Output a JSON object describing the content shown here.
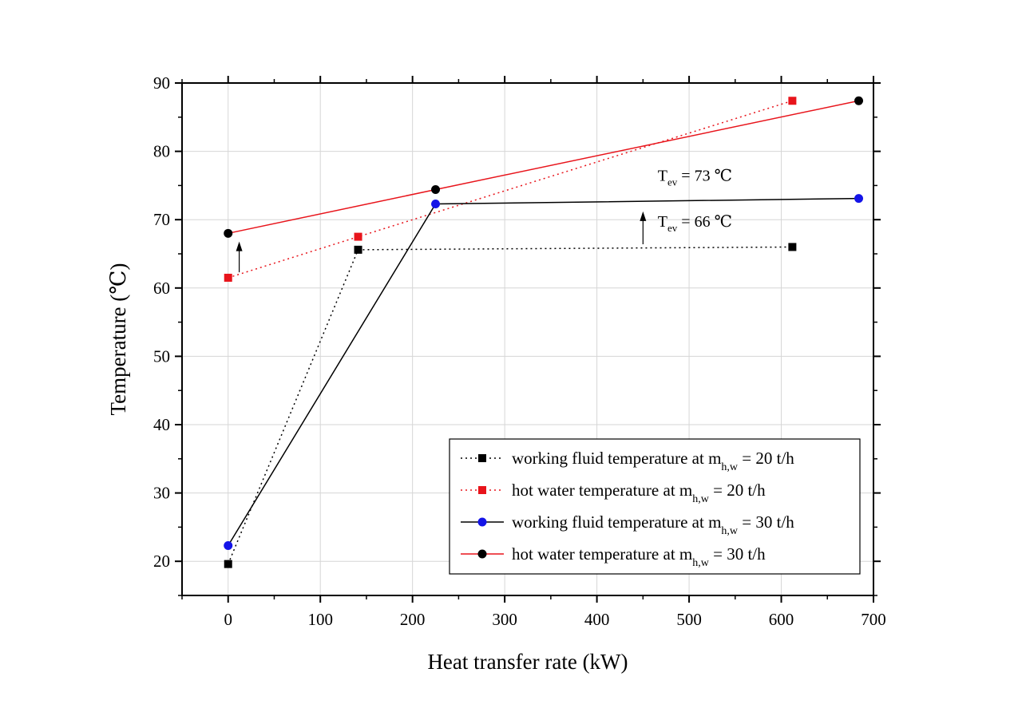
{
  "chart_data": {
    "type": "line",
    "xlabel": "Heat transfer rate (kW)",
    "ylabel": "Temperature (℃)",
    "xlim": [
      -50,
      700
    ],
    "ylim": [
      15,
      90
    ],
    "xticks": [
      0,
      100,
      200,
      300,
      400,
      500,
      600,
      700
    ],
    "yticks": [
      20,
      30,
      40,
      50,
      60,
      70,
      80,
      90
    ],
    "grid": true,
    "legend_position": "bottom-right",
    "series": [
      {
        "legend": {
          "main": "working fluid temperature at m",
          "sub": "h,w",
          "tail": " = 20 t/h"
        },
        "line_style": "dotted",
        "line_color": "#000000",
        "marker": "square",
        "marker_color": "#000000",
        "x": [
          0,
          141,
          612
        ],
        "y": [
          19.6,
          65.6,
          66.0
        ]
      },
      {
        "legend": {
          "main": "hot water temperature at m",
          "sub": "h,w",
          "tail": " = 20 t/h"
        },
        "line_style": "dotted",
        "line_color": "#e8141b",
        "marker": "square",
        "marker_color": "#e8141b",
        "x": [
          0,
          141,
          612
        ],
        "y": [
          61.5,
          67.5,
          87.4
        ]
      },
      {
        "legend": {
          "main": "working fluid temperature at m",
          "sub": "h,w",
          "tail": " = 30 t/h"
        },
        "line_style": "solid",
        "line_color": "#000000",
        "marker": "circle",
        "marker_color": "#1414e8",
        "x": [
          0,
          225,
          684
        ],
        "y": [
          22.3,
          72.3,
          73.1
        ]
      },
      {
        "legend": {
          "main": "hot water temperature at m",
          "sub": "h,w",
          "tail": " = 30 t/h"
        },
        "line_style": "solid",
        "line_color": "#e8141b",
        "marker": "circle",
        "marker_color": "#000000",
        "x": [
          0,
          225,
          684
        ],
        "y": [
          68.0,
          74.4,
          87.4
        ]
      }
    ],
    "annotations": [
      {
        "id": "tev73",
        "main": "T",
        "sub": "ev",
        "tail": " = 73 ℃",
        "x": 466,
        "y": 75.7
      },
      {
        "id": "tev66",
        "main": "T",
        "sub": "ev",
        "tail": " = 66 ℃",
        "x": 466,
        "y": 69.0
      }
    ],
    "arrows": [
      {
        "x": 12,
        "y_from": 62.3,
        "y_to": 66.8
      },
      {
        "x": 450,
        "y_from": 66.4,
        "y_to": 71.2
      }
    ]
  }
}
